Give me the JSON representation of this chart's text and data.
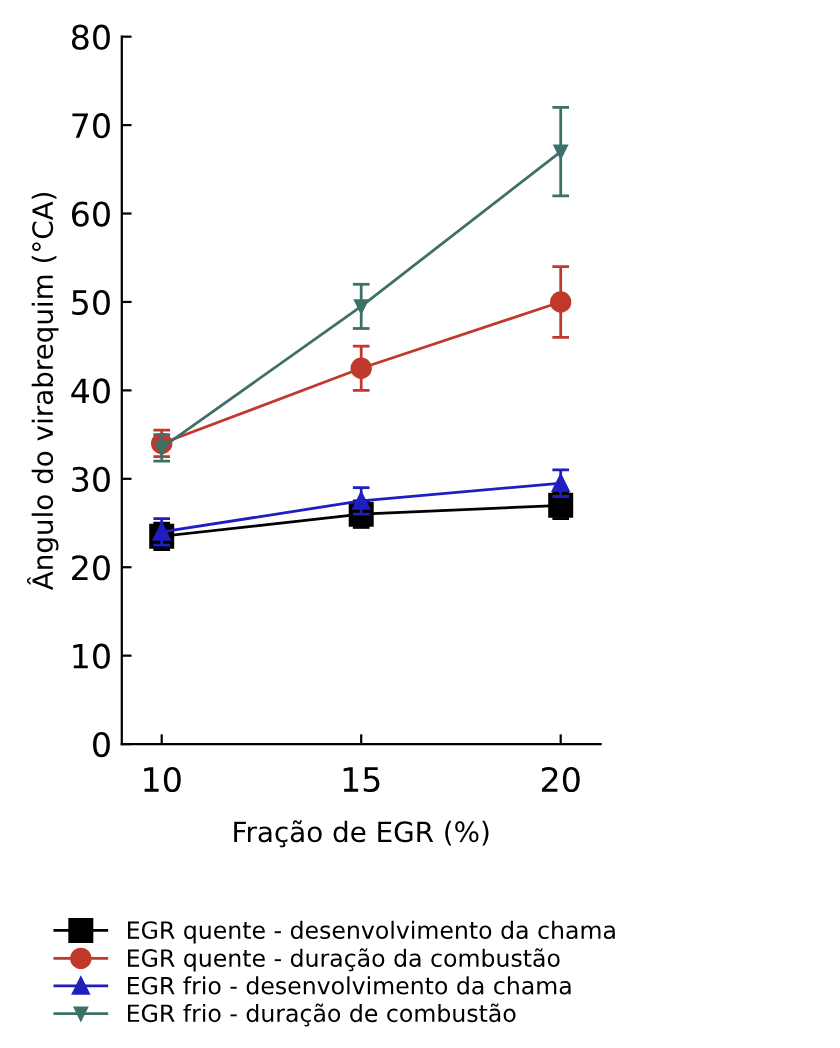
{
  "chart_data": {
    "type": "line",
    "xlabel": "Fração de EGR (%)",
    "ylabel": "Ângulo do virabrequim (°CA)",
    "x": [
      10,
      15,
      20
    ],
    "xlim": [
      9,
      21
    ],
    "xticks": [
      10,
      15,
      20
    ],
    "ylim": [
      0,
      80
    ],
    "yticks": [
      0,
      10,
      20,
      30,
      40,
      50,
      60,
      70,
      80
    ],
    "grid": false,
    "legend": "bottom",
    "line_style": "solid",
    "series": [
      {
        "name": "EGR quente - desenvolvimento da chama",
        "color": "#000000",
        "marker": "square",
        "values": [
          23.5,
          26,
          27
        ],
        "errors": [
          1.5,
          1.5,
          1.5
        ]
      },
      {
        "name": "EGR quente - duração da combustão",
        "color": "#c0392b",
        "marker": "circle",
        "values": [
          34,
          42.5,
          50
        ],
        "errors": [
          1.5,
          2.5,
          4
        ]
      },
      {
        "name": "EGR frio - desenvolvimento da chama",
        "color": "#1f1fbf",
        "marker": "triangle",
        "values": [
          24,
          27.5,
          29.5
        ],
        "errors": [
          1.5,
          1.5,
          1.5
        ]
      },
      {
        "name": "EGR frio - duração de combustão",
        "color": "#3d7068",
        "marker": "triangle_down",
        "values": [
          33.5,
          49.5,
          67
        ],
        "errors": [
          1.5,
          2.5,
          5
        ]
      }
    ]
  }
}
